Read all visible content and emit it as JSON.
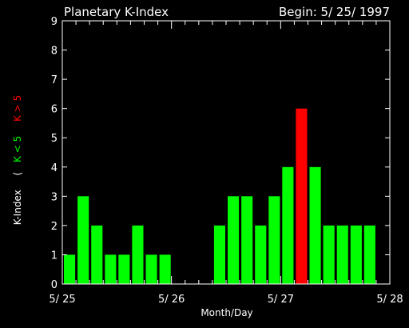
{
  "header": {
    "title": "Planetary K-Index",
    "begin": "Begin: 5/ 25/ 1997"
  },
  "colors": {
    "background": "#000000",
    "axis": "#ffffff",
    "quiet": "#00ff00",
    "storm": "#ff0000"
  },
  "ylabel": {
    "main": "K-Index",
    "open": "(",
    "quiet": "K < 5",
    "storm": "K > 5"
  },
  "chart_data": {
    "type": "bar",
    "title": "Planetary K-Index",
    "xlabel": "Month/Day",
    "ylabel": "K-Index",
    "ylim": [
      0,
      9
    ],
    "yticks": [
      "0",
      "1",
      "2",
      "3",
      "4",
      "5",
      "6",
      "7",
      "8",
      "9"
    ],
    "xticks": [
      "5/ 25",
      "5/ 26",
      "5/ 27",
      "5/ 28"
    ],
    "interval_hours": 3,
    "grid": false,
    "values": [
      1,
      3,
      2,
      1,
      1,
      2,
      1,
      1,
      null,
      null,
      null,
      2,
      3,
      3,
      2,
      3,
      4,
      6,
      4,
      2,
      2,
      2,
      2,
      null
    ],
    "storm_threshold": 5
  }
}
